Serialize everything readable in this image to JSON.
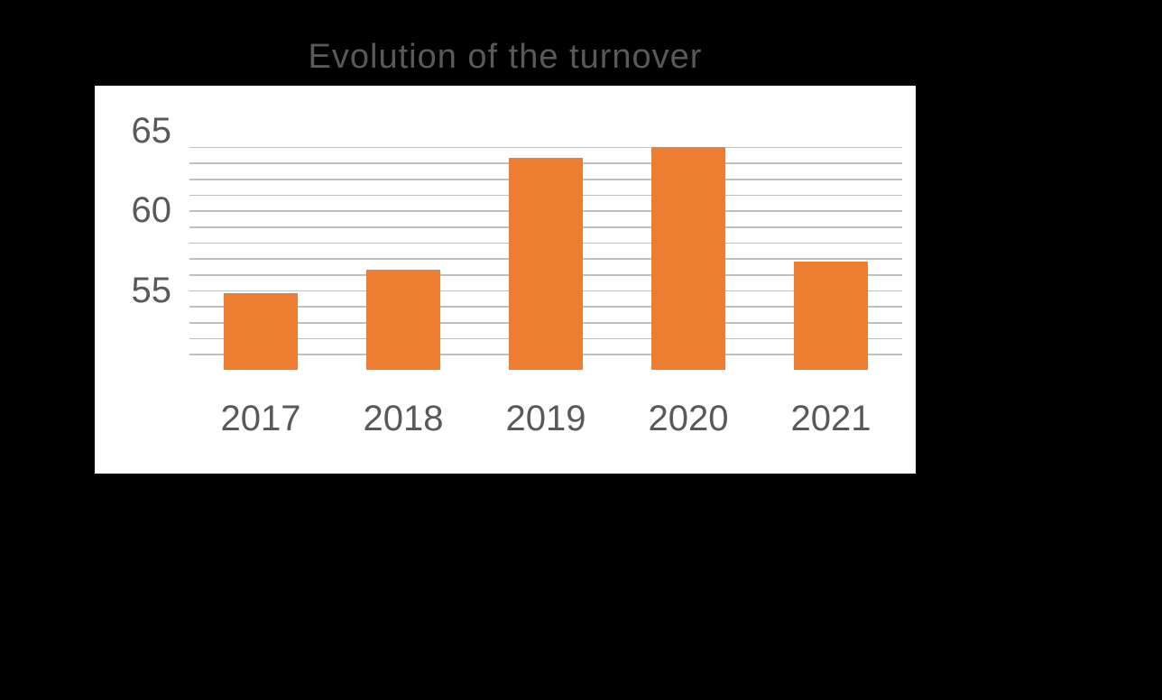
{
  "chart": {
    "type": "bar",
    "title": "Evolution of the turnover",
    "title_fontsize": 38,
    "title_color": "#595959",
    "background_color": "#000000",
    "plot_background": "#ffffff",
    "categories": [
      "2017",
      "2018",
      "2019",
      "2020",
      "2021"
    ],
    "values": [
      54.8,
      56.3,
      63.3,
      64.0,
      56.8
    ],
    "bar_color": "#ed7d31",
    "bar_width": 0.52,
    "ylim": [
      50,
      65
    ],
    "ytick_positions": [
      55,
      60,
      65
    ],
    "ytick_labels": [
      "55",
      "60",
      "65"
    ],
    "minor_gridlines": [
      51,
      52,
      53,
      54,
      55,
      56,
      57,
      58,
      59,
      60,
      61,
      62,
      63,
      64
    ],
    "grid_color": "#bfbfbf",
    "axis_label_fontsize": 40,
    "axis_label_color": "#595959",
    "x_label_fontsize": 40
  }
}
